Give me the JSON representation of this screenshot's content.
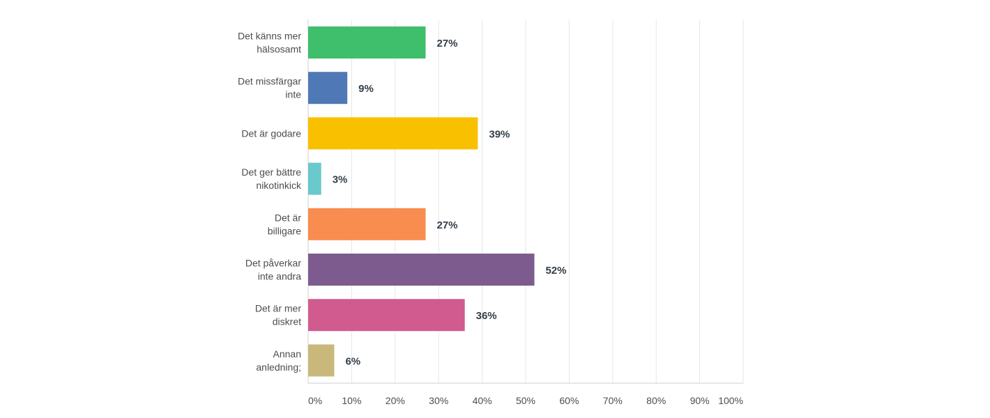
{
  "chart_data": {
    "type": "bar",
    "orientation": "horizontal",
    "categories": [
      [
        "Det känns mer",
        "hälsosamt"
      ],
      [
        "Det missfärgar",
        "inte"
      ],
      [
        "Det är godare"
      ],
      [
        "Det ger bättre",
        "nikotinkick"
      ],
      [
        "Det är",
        "billigare"
      ],
      [
        "Det påverkar",
        "inte andra"
      ],
      [
        "Det är mer",
        "diskret"
      ],
      [
        "Annan",
        "anledning;"
      ]
    ],
    "values": [
      27,
      9,
      39,
      3,
      27,
      52,
      36,
      6
    ],
    "value_labels": [
      "27%",
      "9%",
      "39%",
      "3%",
      "27%",
      "52%",
      "36%",
      "6%"
    ],
    "colors": [
      "#3fbf6b",
      "#4e79b6",
      "#f9c000",
      "#6ac9cc",
      "#f88d4f",
      "#7e5b8e",
      "#d15b8f",
      "#c8b97a"
    ],
    "xlim": [
      0,
      100
    ],
    "x_ticks": [
      "0%",
      "10%",
      "20%",
      "30%",
      "40%",
      "50%",
      "60%",
      "70%",
      "80%",
      "90%",
      "100%"
    ],
    "grid": true,
    "title": "",
    "xlabel": "",
    "ylabel": ""
  }
}
